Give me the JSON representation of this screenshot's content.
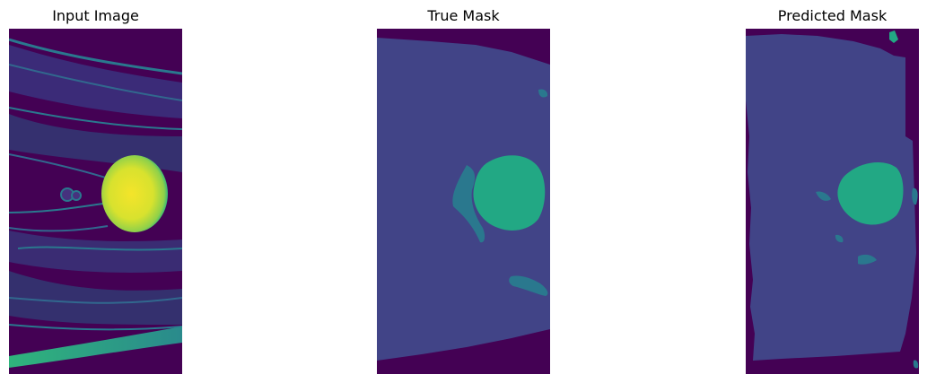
{
  "panels": [
    {
      "title": "Input Image"
    },
    {
      "title": "True Mask"
    },
    {
      "title": "Predicted Mask"
    }
  ],
  "colors": {
    "background": "#440154",
    "tissue": "#414487",
    "class_mid": "#2a788e",
    "lesion": "#22a884",
    "bright": "#fde725"
  }
}
